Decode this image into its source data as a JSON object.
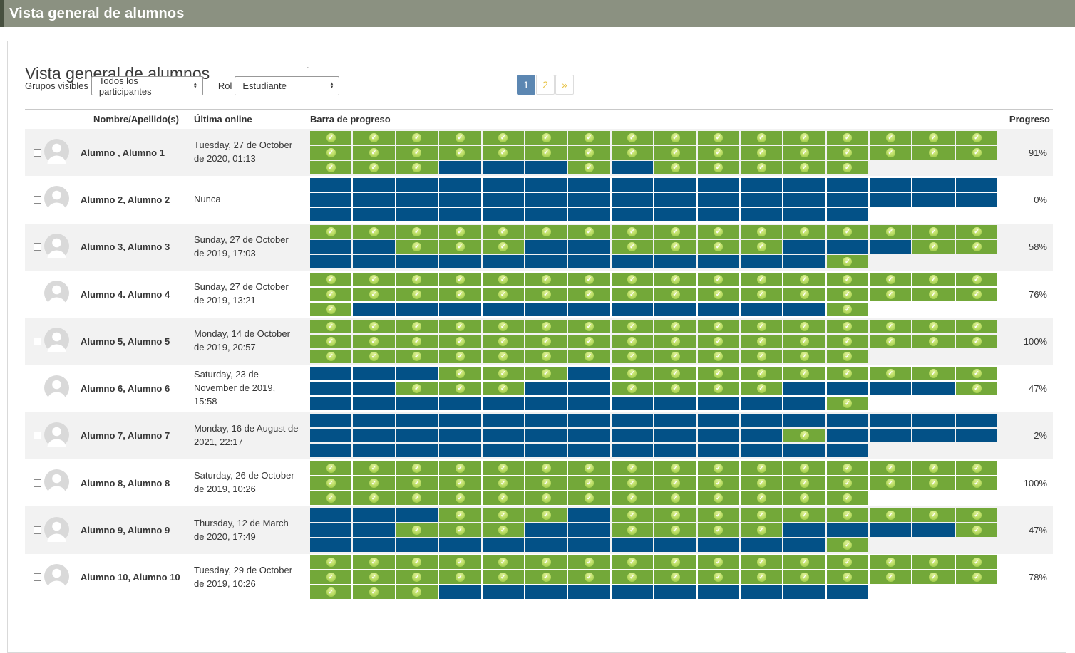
{
  "topbar": {
    "title": "Vista general de alumnos"
  },
  "main": {
    "heading": "Vista general de alumnos",
    "stray_dot": "."
  },
  "filters": {
    "groups_label": "Grupos visibles",
    "groups_value": "Todos los participantes",
    "role_label": "Rol",
    "role_value": "Estudiante"
  },
  "pagination": {
    "items": [
      {
        "label": "1",
        "active": true
      },
      {
        "label": "2",
        "active": false
      },
      {
        "label": "»",
        "active": false
      }
    ]
  },
  "table": {
    "headers": {
      "name": "Nombre/Apellido(s)",
      "last_online": "Última online",
      "progress_bar": "Barra de progreso",
      "progress": "Progreso"
    },
    "students": [
      {
        "name": "Alumno , Alumno 1",
        "last_online": "Tuesday, 27 de October de 2020, 01:13",
        "progress": "91%",
        "bar_rows": [
          "gggggggggggggggg",
          "gggggggggggggggg",
          "gggbbbgbggggg"
        ]
      },
      {
        "name": "Alumno 2, Alumno 2",
        "last_online": "Nunca",
        "progress": "0%",
        "bar_rows": [
          "bbbbbbbbbbbbbbbb",
          "bbbbbbbbbbbbbbbb",
          "bbbbbbbbbbbbb"
        ]
      },
      {
        "name": "Alumno 3, Alumno 3",
        "last_online": "Sunday, 27 de October de 2019, 17:03",
        "progress": "58%",
        "bar_rows": [
          "gggggggggggggggg",
          "bbgggbbggggbbbgg",
          "bbbbbbbbbbbbg"
        ]
      },
      {
        "name": "Alumno 4. Alumno 4",
        "last_online": "Sunday, 27 de October de 2019, 13:21",
        "progress": "76%",
        "bar_rows": [
          "gggggggggggggggg",
          "gggggggggggggggg",
          "gbbbbbbbbbbbg"
        ]
      },
      {
        "name": "Alumno 5, Alumno 5",
        "last_online": "Monday, 14 de October de 2019, 20:57",
        "progress": "100%",
        "bar_rows": [
          "gggggggggggggggg",
          "gggggggggggggggg",
          "ggggggggggggg"
        ]
      },
      {
        "name": "Alumno 6, Alumno 6",
        "last_online": "Saturday, 23 de November de 2019, 15:58",
        "progress": "47%",
        "bar_rows": [
          "bbbgggbggggggggg",
          "bbgggbbggggbbbbg",
          "bbbbbbbbbbbbg"
        ]
      },
      {
        "name": "Alumno 7, Alumno 7",
        "last_online": "Monday, 16 de August de 2021, 22:17",
        "progress": "2%",
        "bar_rows": [
          "bbbbbbbbbbbbbbbb",
          "bbbbbbbbbbbgbbbb",
          "bbbbbbbbbbbbb"
        ]
      },
      {
        "name": "Alumno 8, Alumno 8",
        "last_online": "Saturday, 26 de October de 2019, 10:26",
        "progress": "100%",
        "bar_rows": [
          "gggggggggggggggg",
          "gggggggggggggggg",
          "ggggggggggggg"
        ]
      },
      {
        "name": "Alumno 9, Alumno 9",
        "last_online": "Thursday, 12 de March de 2020, 17:49",
        "progress": "47%",
        "bar_rows": [
          "bbbgggbggggggggg",
          "bbgggbbggggbbbbg",
          "bbbbbbbbbbbbg"
        ]
      },
      {
        "name": "Alumno 10, Alumno 10",
        "last_online": "Tuesday, 29 de October de 2019, 10:26",
        "progress": "78%",
        "bar_rows": [
          "gggggggggggggggg",
          "gggggggggggggggg",
          "gggbbbbbbbbbb"
        ]
      }
    ]
  },
  "icons": {
    "check_glyph": "✓",
    "arrow_up_glyph": "▲",
    "arrow_down_glyph": "▼"
  },
  "colors": {
    "topbar": "#8b9181",
    "complete": "#73a839",
    "incomplete": "#035187",
    "active_page": "#5c87b2",
    "page_link": "#e7c243"
  }
}
